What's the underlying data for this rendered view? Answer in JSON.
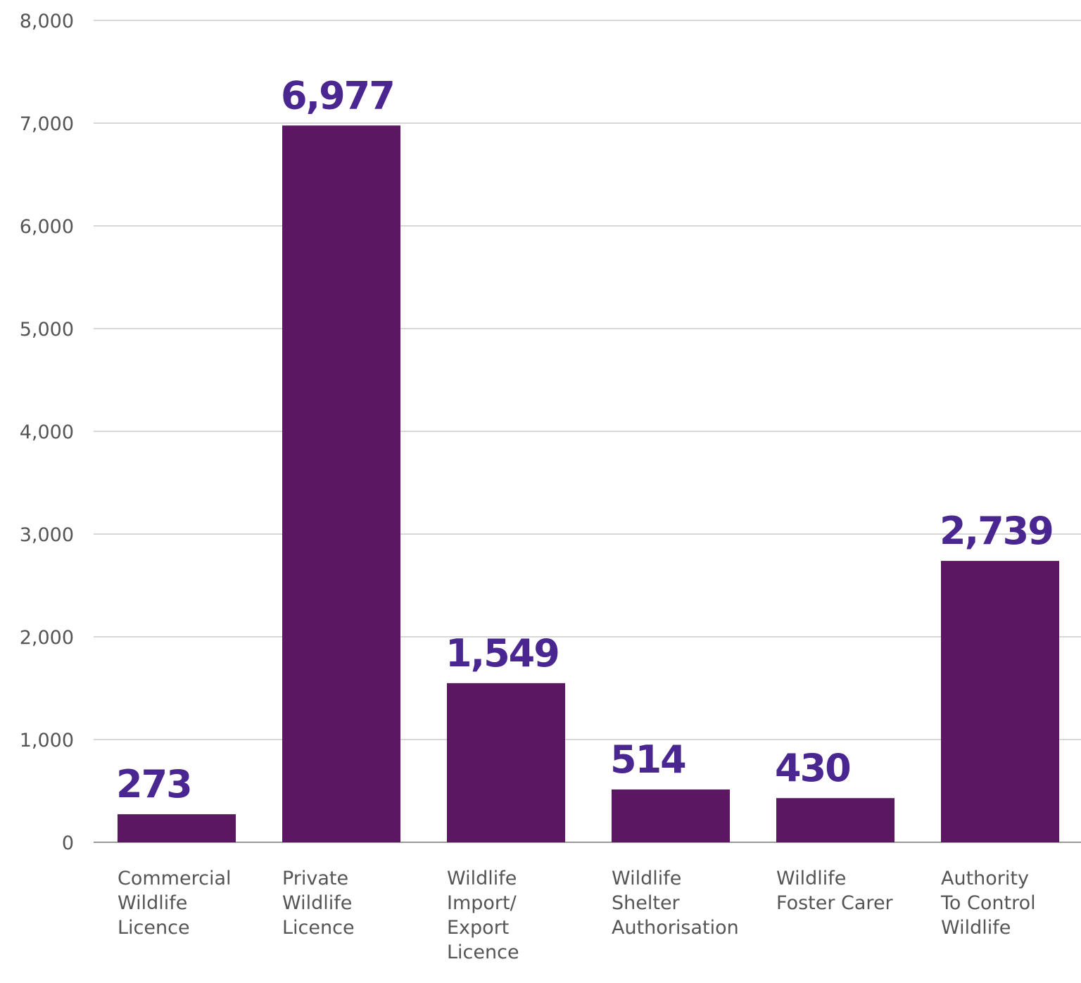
{
  "chart_data": {
    "type": "bar",
    "categories": [
      [
        "Commercial",
        "Wildlife",
        "Licence"
      ],
      [
        "Private",
        "Wildlife",
        "Licence"
      ],
      [
        "Wildlife",
        "Import/",
        "Export",
        "Licence"
      ],
      [
        "Wildlife",
        "Shelter",
        "Authorisation"
      ],
      [
        "Wildlife",
        "Foster Carer"
      ],
      [
        "Authority",
        "To Control",
        "Wildlife"
      ]
    ],
    "values": [
      273,
      6977,
      1549,
      514,
      430,
      2739
    ],
    "data_labels": [
      "273",
      "6,977",
      "1,549",
      "514",
      "430",
      "2,739"
    ],
    "ylim": [
      0,
      8000
    ],
    "yticks": [
      0,
      1000,
      2000,
      3000,
      4000,
      5000,
      6000,
      7000,
      8000
    ],
    "ytick_labels": [
      "0",
      "1,000",
      "2,000",
      "3,000",
      "4,000",
      "5,000",
      "6,000",
      "7,000",
      "8,000"
    ],
    "grid": true,
    "colors": {
      "bar": "#5c1763",
      "data_label": "#4a2790",
      "grid": "#cccccc",
      "axis": "#999999"
    }
  }
}
